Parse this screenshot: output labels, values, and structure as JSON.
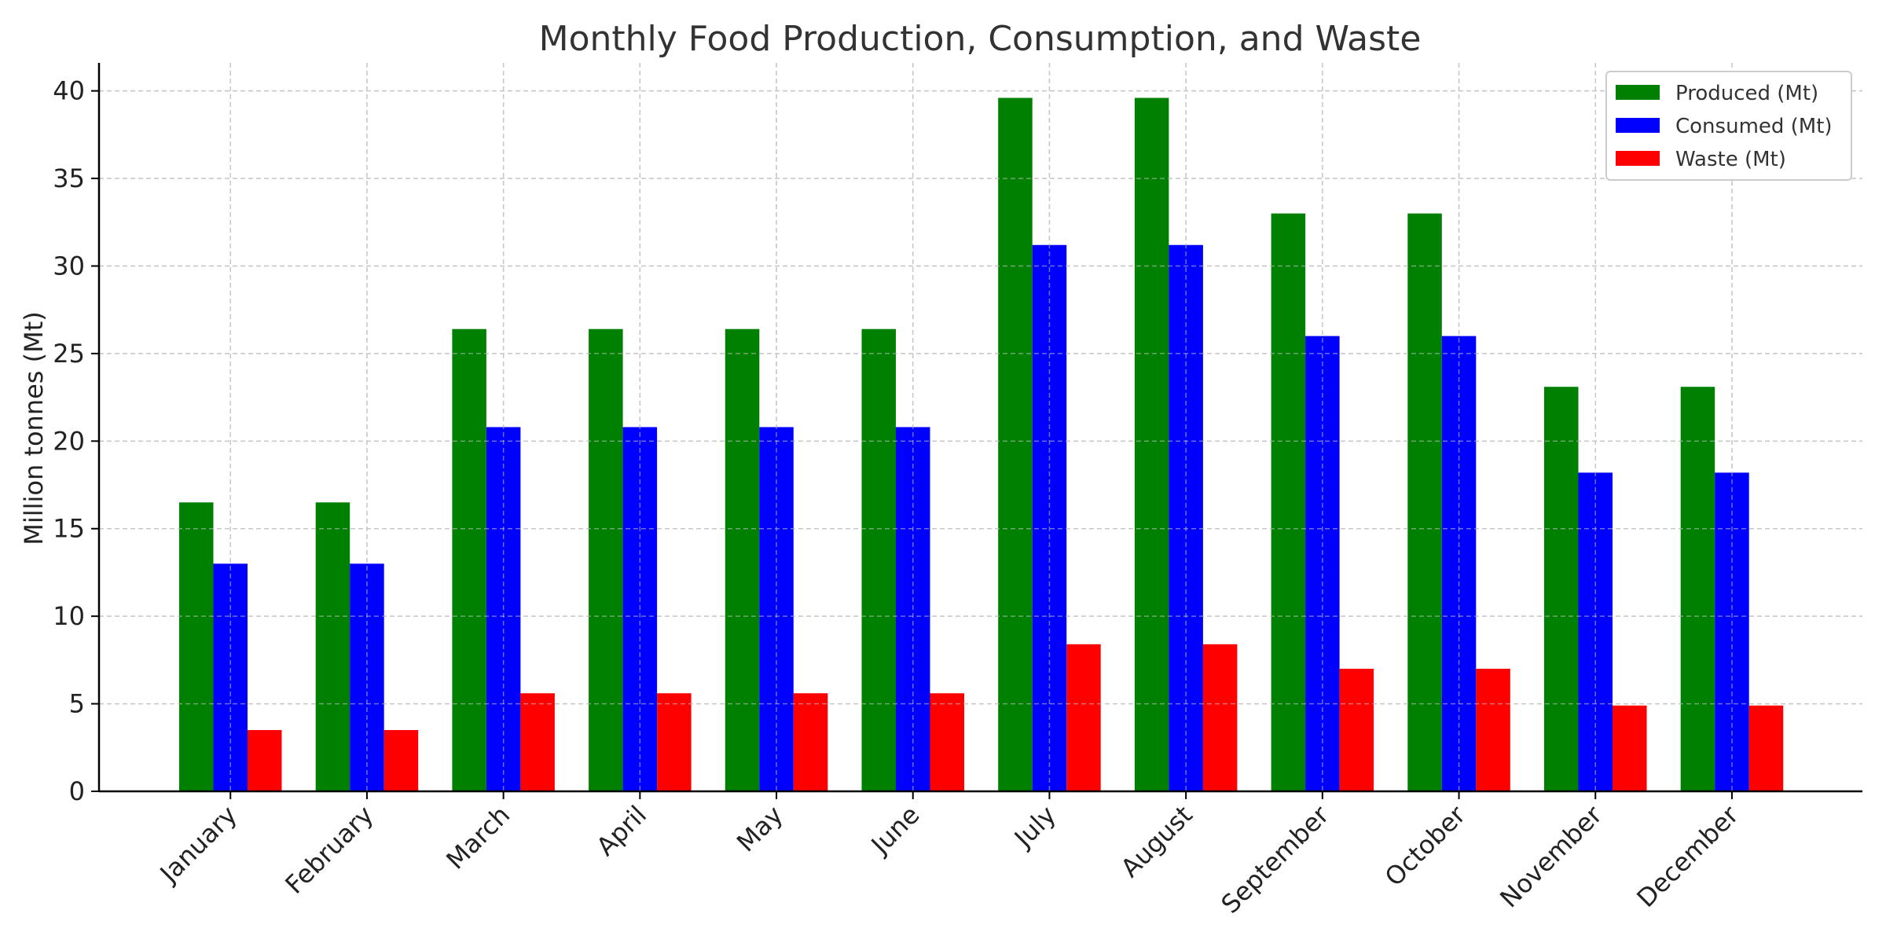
{
  "chart_data": {
    "type": "bar",
    "title": "Monthly Food Production, Consumption, and Waste",
    "xlabel": "",
    "ylabel": "Million tonnes (Mt)",
    "ylim": [
      0,
      41.6
    ],
    "yticks": [
      0,
      5,
      10,
      15,
      20,
      25,
      30,
      35,
      40
    ],
    "grid": true,
    "legend_position": "top-right",
    "categories": [
      "January",
      "February",
      "March",
      "April",
      "May",
      "June",
      "July",
      "August",
      "September",
      "October",
      "November",
      "December"
    ],
    "series": [
      {
        "name": "Produced (Mt)",
        "color": "#008000",
        "values": [
          16.5,
          16.5,
          26.4,
          26.4,
          26.4,
          26.4,
          39.6,
          39.6,
          33.0,
          33.0,
          23.1,
          23.1
        ]
      },
      {
        "name": "Consumed (Mt)",
        "color": "#0000ff",
        "values": [
          13.0,
          13.0,
          20.8,
          20.8,
          20.8,
          20.8,
          31.2,
          31.2,
          26.0,
          26.0,
          18.2,
          18.2
        ]
      },
      {
        "name": "Waste (Mt)",
        "color": "#ff0000",
        "values": [
          3.5,
          3.5,
          5.6,
          5.6,
          5.6,
          5.6,
          8.4,
          8.4,
          7.0,
          7.0,
          4.9,
          4.9
        ]
      }
    ]
  }
}
